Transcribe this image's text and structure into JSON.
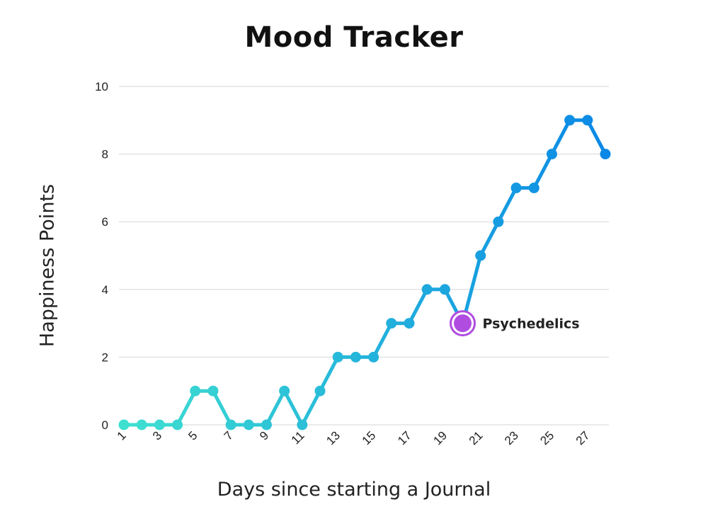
{
  "chart_data": {
    "type": "line",
    "title": "Mood Tracker",
    "xlabel": "Days since starting a Journal",
    "ylabel": "Happiness Points",
    "x_ticks": [
      "1",
      "3",
      "5",
      "7",
      "9",
      "11",
      "13",
      "15",
      "17",
      "19",
      "21",
      "23",
      "25",
      "27"
    ],
    "y_ticks": [
      "0",
      "2",
      "4",
      "6",
      "8",
      "10"
    ],
    "ylim": [
      0,
      10
    ],
    "xlim": [
      1,
      28
    ],
    "grid": true,
    "series": [
      {
        "x": [
          1,
          2,
          3,
          4,
          5,
          6,
          7,
          8,
          9,
          10,
          11,
          12,
          13,
          14,
          15,
          16,
          17,
          18,
          19,
          20,
          21,
          22,
          23,
          24,
          25,
          26,
          27,
          28
        ],
        "values": [
          0,
          0,
          0,
          0,
          1,
          1,
          0,
          0,
          0,
          1,
          0,
          1,
          2,
          2,
          2,
          3,
          3,
          4,
          4,
          3,
          5,
          6,
          7,
          7,
          8,
          9,
          9,
          8
        ]
      }
    ],
    "annotations": [
      {
        "x": 20,
        "y": 3,
        "text": "Psychedelics",
        "color": "#b04de0"
      }
    ],
    "colors": {
      "gradient_start": "#3fe0d0",
      "gradient_end": "#0a88e6",
      "grid": "#d6d6d6",
      "annotation_fill": "#b04de0"
    }
  }
}
